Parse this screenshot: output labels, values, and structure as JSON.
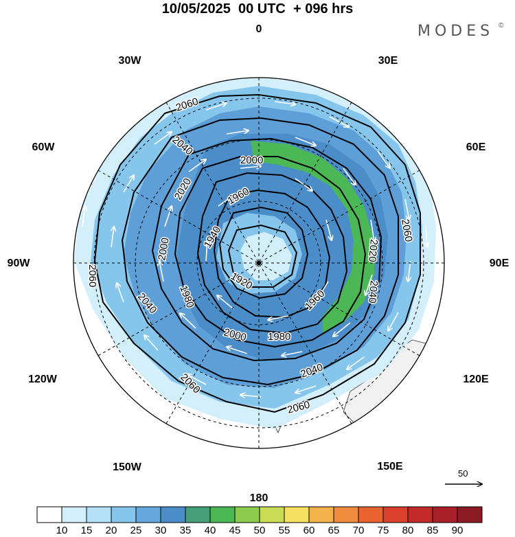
{
  "title": "10/05/2025  00 UTC  + 096 hrs",
  "brand": "MODES",
  "brand_mark": "©",
  "longitude_labels": {
    "top": "0",
    "top_right": "30E",
    "upper_right": "60E",
    "right": "90E",
    "lower_right": "120E",
    "bottom_right": "150E",
    "bottom": "180",
    "bottom_left": "150W",
    "lower_left": "120W",
    "left": "90W",
    "upper_left": "60W",
    "top_left": "30W"
  },
  "contour_labels": [
    "2060",
    "2040",
    "2020",
    "2000",
    "1980",
    "1960",
    "1940",
    "1920"
  ],
  "reference_vector": {
    "value": "50"
  },
  "colorbar": {
    "ticks": [
      "10",
      "15",
      "20",
      "25",
      "30",
      "35",
      "40",
      "45",
      "50",
      "55",
      "60",
      "65",
      "70",
      "75",
      "80",
      "85",
      "90"
    ],
    "colors": [
      "#ffffff",
      "#d4effc",
      "#b2e1f8",
      "#86c6ec",
      "#65a8de",
      "#4a8dc8",
      "#45a07a",
      "#4cb755",
      "#8ccb4e",
      "#c8dc55",
      "#f6e062",
      "#f3b24c",
      "#ef8c3d",
      "#e8632f",
      "#d9402e",
      "#c22a2a",
      "#a81f2a",
      "#8b1a22"
    ]
  },
  "colors": {
    "land": "#f1f1f1",
    "contour": "#000000",
    "vector": "#ffffff",
    "grid": "#000000"
  }
}
